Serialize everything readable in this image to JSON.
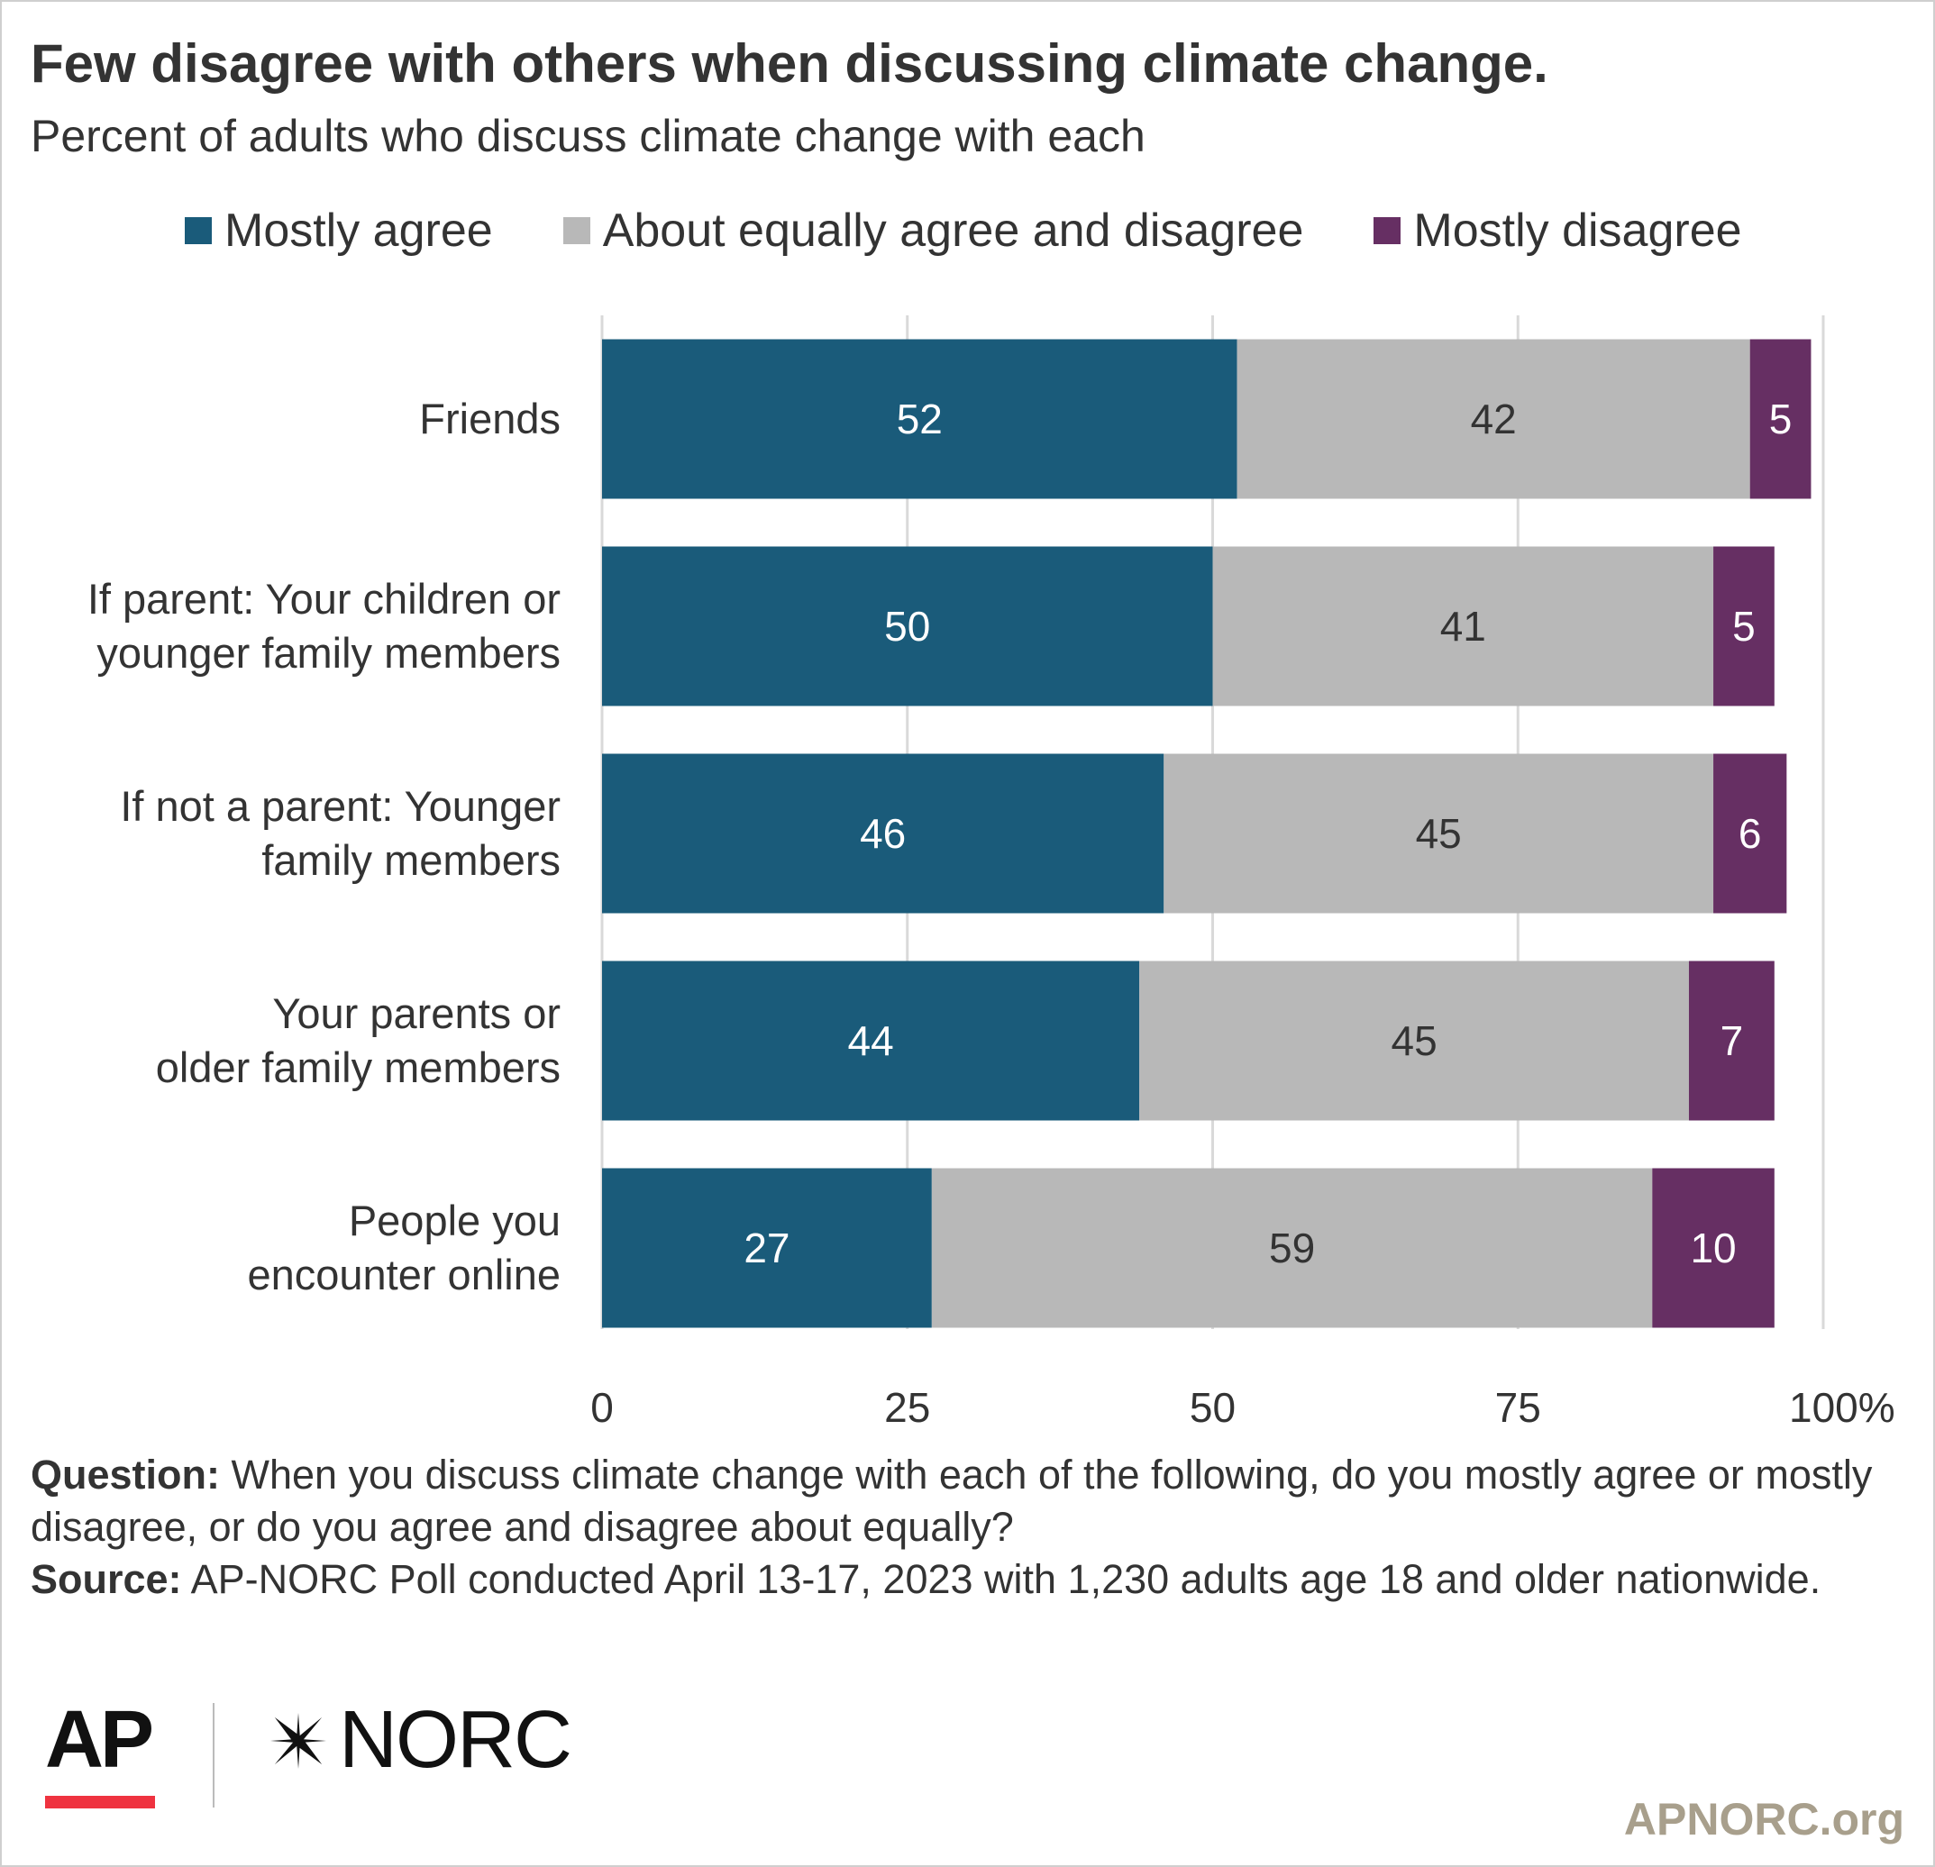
{
  "header": {
    "title": "Few disagree with others when discussing climate change.",
    "subtitle": "Percent of adults who discuss climate change with each"
  },
  "legend": [
    {
      "label": "Mostly agree",
      "color": "#1a5b7a"
    },
    {
      "label": "About equally agree and disagree",
      "color": "#b8b8b8"
    },
    {
      "label": "Mostly disagree",
      "color": "#662f63"
    }
  ],
  "chart_data": {
    "type": "bar",
    "orientation": "horizontal",
    "stacked": true,
    "categories": [
      [
        "Friends"
      ],
      [
        "If parent: Your children or",
        "younger family members"
      ],
      [
        "If not a parent: Younger",
        "family members"
      ],
      [
        "Your parents or",
        "older family members"
      ],
      [
        "People you",
        "encounter online"
      ]
    ],
    "series": [
      {
        "name": "Mostly agree",
        "color": "#1a5b7a",
        "label_color": "#ffffff",
        "values": [
          52,
          50,
          46,
          44,
          27
        ]
      },
      {
        "name": "About equally agree and disagree",
        "color": "#b8b8b8",
        "label_color": "#333333",
        "values": [
          42,
          41,
          45,
          45,
          59
        ]
      },
      {
        "name": "Mostly disagree",
        "color": "#662f63",
        "label_color": "#ffffff",
        "values": [
          5,
          5,
          6,
          7,
          10
        ]
      }
    ],
    "xlim": [
      0,
      100
    ],
    "x_ticks": [
      0,
      25,
      50,
      75,
      100
    ],
    "x_tick_labels": [
      "0",
      "25",
      "50",
      "75",
      "100%"
    ],
    "grid": true
  },
  "notes": {
    "question_label": "Question:",
    "question_text": " When you discuss climate change with each of the following, do you mostly agree or mostly disagree, or do you agree and disagree about equally?",
    "source_label": "Source:",
    "source_text": " AP-NORC Poll conducted April 13-17, 2023 with 1,230 adults age 18 and older nationwide."
  },
  "footer": {
    "logo_ap": "AP",
    "logo_norc": "NORC",
    "website": "APNORC.org"
  }
}
